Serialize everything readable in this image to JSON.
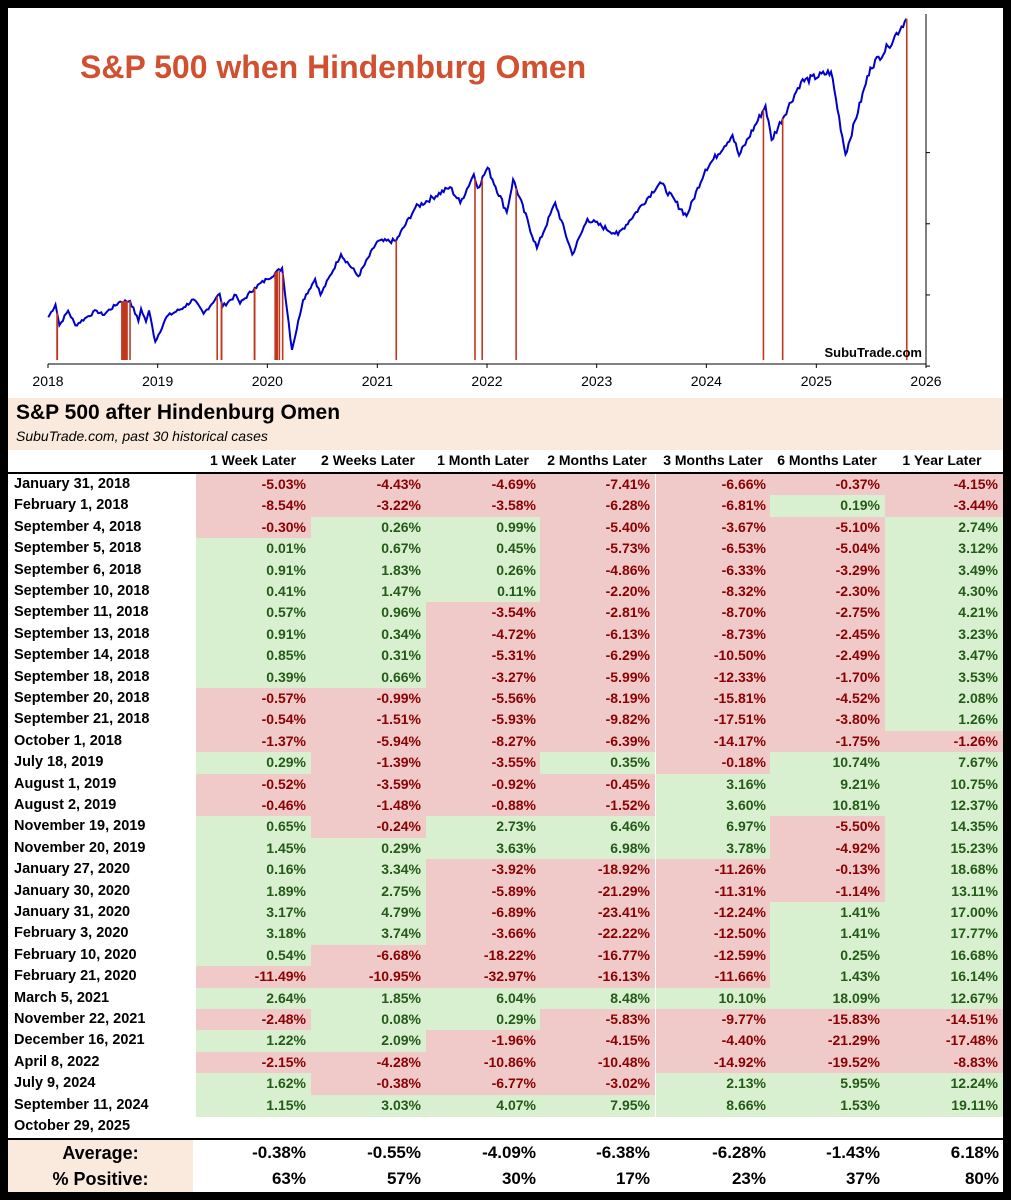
{
  "chart_data": {
    "type": "line",
    "title": "S&P 500 when Hindenburg Omen",
    "watermark": "SubuTrade.com",
    "x_ticks": [
      "2018",
      "2019",
      "2020",
      "2021",
      "2022",
      "2023",
      "2024",
      "2025",
      "2026"
    ],
    "colors": {
      "title": "#d0502f",
      "line": "#0000cc",
      "signal": "#c0391f"
    },
    "omen_dates": [
      "2018-01-31",
      "2018-02-01",
      "2018-09-04",
      "2018-09-05",
      "2018-09-06",
      "2018-09-10",
      "2018-09-11",
      "2018-09-13",
      "2018-09-14",
      "2018-09-18",
      "2018-09-20",
      "2018-09-21",
      "2018-10-01",
      "2019-07-18",
      "2019-08-01",
      "2019-08-02",
      "2019-11-19",
      "2019-11-20",
      "2020-01-27",
      "2020-01-30",
      "2020-01-31",
      "2020-02-03",
      "2020-02-10",
      "2020-02-21",
      "2021-03-05",
      "2021-11-22",
      "2021-12-16",
      "2022-04-08",
      "2024-07-09",
      "2024-09-11",
      "2025-10-29"
    ],
    "series": [
      {
        "points": [
          [
            "2018-01-02",
            2695
          ],
          [
            "2018-01-26",
            2873
          ],
          [
            "2018-02-08",
            2581
          ],
          [
            "2018-03-09",
            2786
          ],
          [
            "2018-04-02",
            2582
          ],
          [
            "2018-05-15",
            2711
          ],
          [
            "2018-06-12",
            2787
          ],
          [
            "2018-07-02",
            2726
          ],
          [
            "2018-08-29",
            2914
          ],
          [
            "2018-10-01",
            2924
          ],
          [
            "2018-10-29",
            2641
          ],
          [
            "2018-11-07",
            2814
          ],
          [
            "2018-11-23",
            2633
          ],
          [
            "2018-12-03",
            2790
          ],
          [
            "2018-12-24",
            2351
          ],
          [
            "2019-01-31",
            2704
          ],
          [
            "2019-03-29",
            2834
          ],
          [
            "2019-04-30",
            2946
          ],
          [
            "2019-06-03",
            2744
          ],
          [
            "2019-07-26",
            3025
          ],
          [
            "2019-08-05",
            2845
          ],
          [
            "2019-09-19",
            3006
          ],
          [
            "2019-10-02",
            2887
          ],
          [
            "2019-11-20",
            3108
          ],
          [
            "2019-12-31",
            3231
          ],
          [
            "2020-02-19",
            3386
          ],
          [
            "2020-03-23",
            2237
          ],
          [
            "2020-04-29",
            2939
          ],
          [
            "2020-06-08",
            3232
          ],
          [
            "2020-06-26",
            3009
          ],
          [
            "2020-09-02",
            3580
          ],
          [
            "2020-10-30",
            3270
          ],
          [
            "2020-12-31",
            3756
          ],
          [
            "2021-03-04",
            3768
          ],
          [
            "2021-05-07",
            4232
          ],
          [
            "2021-08-31",
            4523
          ],
          [
            "2021-10-04",
            4300
          ],
          [
            "2021-11-18",
            4704
          ],
          [
            "2021-12-01",
            4513
          ],
          [
            "2022-01-03",
            4796
          ],
          [
            "2022-03-08",
            4170
          ],
          [
            "2022-03-29",
            4632
          ],
          [
            "2022-06-16",
            3666
          ],
          [
            "2022-08-16",
            4305
          ],
          [
            "2022-10-12",
            3577
          ],
          [
            "2022-12-01",
            4076
          ],
          [
            "2023-03-13",
            3855
          ],
          [
            "2023-07-31",
            4589
          ],
          [
            "2023-10-27",
            4117
          ],
          [
            "2023-12-29",
            4770
          ],
          [
            "2024-03-28",
            5254
          ],
          [
            "2024-04-19",
            4967
          ],
          [
            "2024-07-16",
            5667
          ],
          [
            "2024-08-05",
            5186
          ],
          [
            "2024-11-11",
            6001
          ],
          [
            "2025-02-19",
            6144
          ],
          [
            "2025-04-08",
            4983
          ],
          [
            "2025-06-30",
            6205
          ],
          [
            "2025-08-28",
            6501
          ],
          [
            "2025-10-28",
            6890
          ]
        ]
      }
    ]
  },
  "table": {
    "title": "S&P 500 after Hindenburg Omen",
    "subtitle": "SubuTrade.com, past 30 historical cases",
    "columns": [
      "1 Week Later",
      "2 Weeks Later",
      "1 Month Later",
      "2 Months Later",
      "3 Months Later",
      "6 Months Later",
      "1 Year Later"
    ],
    "rows": [
      {
        "date": "January 31, 2018",
        "values": [
          "-5.03%",
          "-4.43%",
          "-4.69%",
          "-7.41%",
          "-6.66%",
          "-0.37%",
          "-4.15%"
        ]
      },
      {
        "date": "February 1, 2018",
        "values": [
          "-8.54%",
          "-3.22%",
          "-3.58%",
          "-6.28%",
          "-6.81%",
          "0.19%",
          "-3.44%"
        ]
      },
      {
        "date": "September 4, 2018",
        "values": [
          "-0.30%",
          "0.26%",
          "0.99%",
          "-5.40%",
          "-3.67%",
          "-5.10%",
          "2.74%"
        ]
      },
      {
        "date": "September 5, 2018",
        "values": [
          "0.01%",
          "0.67%",
          "0.45%",
          "-5.73%",
          "-6.53%",
          "-5.04%",
          "3.12%"
        ]
      },
      {
        "date": "September 6, 2018",
        "values": [
          "0.91%",
          "1.83%",
          "0.26%",
          "-4.86%",
          "-6.33%",
          "-3.29%",
          "3.49%"
        ]
      },
      {
        "date": "September 10, 2018",
        "values": [
          "0.41%",
          "1.47%",
          "0.11%",
          "-2.20%",
          "-8.32%",
          "-2.30%",
          "4.30%"
        ]
      },
      {
        "date": "September 11, 2018",
        "values": [
          "0.57%",
          "0.96%",
          "-3.54%",
          "-2.81%",
          "-8.70%",
          "-2.75%",
          "4.21%"
        ]
      },
      {
        "date": "September 13, 2018",
        "values": [
          "0.91%",
          "0.34%",
          "-4.72%",
          "-6.13%",
          "-8.73%",
          "-2.45%",
          "3.23%"
        ]
      },
      {
        "date": "September 14, 2018",
        "values": [
          "0.85%",
          "0.31%",
          "-5.31%",
          "-6.29%",
          "-10.50%",
          "-2.49%",
          "3.47%"
        ]
      },
      {
        "date": "September 18, 2018",
        "values": [
          "0.39%",
          "0.66%",
          "-3.27%",
          "-5.99%",
          "-12.33%",
          "-1.70%",
          "3.53%"
        ]
      },
      {
        "date": "September 20, 2018",
        "values": [
          "-0.57%",
          "-0.99%",
          "-5.56%",
          "-8.19%",
          "-15.81%",
          "-4.52%",
          "2.08%"
        ]
      },
      {
        "date": "September 21, 2018",
        "values": [
          "-0.54%",
          "-1.51%",
          "-5.93%",
          "-9.82%",
          "-17.51%",
          "-3.80%",
          "1.26%"
        ]
      },
      {
        "date": "October 1, 2018",
        "values": [
          "-1.37%",
          "-5.94%",
          "-8.27%",
          "-6.39%",
          "-14.17%",
          "-1.75%",
          "-1.26%"
        ]
      },
      {
        "date": "July 18, 2019",
        "values": [
          "0.29%",
          "-1.39%",
          "-3.55%",
          "0.35%",
          "-0.18%",
          "10.74%",
          "7.67%"
        ]
      },
      {
        "date": "August 1, 2019",
        "values": [
          "-0.52%",
          "-3.59%",
          "-0.92%",
          "-0.45%",
          "3.16%",
          "9.21%",
          "10.75%"
        ]
      },
      {
        "date": "August 2, 2019",
        "values": [
          "-0.46%",
          "-1.48%",
          "-0.88%",
          "-1.52%",
          "3.60%",
          "10.81%",
          "12.37%"
        ]
      },
      {
        "date": "November 19, 2019",
        "values": [
          "0.65%",
          "-0.24%",
          "2.73%",
          "6.46%",
          "6.97%",
          "-5.50%",
          "14.35%"
        ]
      },
      {
        "date": "November 20, 2019",
        "values": [
          "1.45%",
          "0.29%",
          "3.63%",
          "6.98%",
          "3.78%",
          "-4.92%",
          "15.23%"
        ]
      },
      {
        "date": "January 27, 2020",
        "values": [
          "0.16%",
          "3.34%",
          "-3.92%",
          "-18.92%",
          "-11.26%",
          "-0.13%",
          "18.68%"
        ]
      },
      {
        "date": "January 30, 2020",
        "values": [
          "1.89%",
          "2.75%",
          "-5.89%",
          "-21.29%",
          "-11.31%",
          "-1.14%",
          "13.11%"
        ]
      },
      {
        "date": "January 31, 2020",
        "values": [
          "3.17%",
          "4.79%",
          "-6.89%",
          "-23.41%",
          "-12.24%",
          "1.41%",
          "17.00%"
        ]
      },
      {
        "date": "February 3, 2020",
        "values": [
          "3.18%",
          "3.74%",
          "-3.66%",
          "-22.22%",
          "-12.50%",
          "1.41%",
          "17.77%"
        ]
      },
      {
        "date": "February 10, 2020",
        "values": [
          "0.54%",
          "-6.68%",
          "-18.22%",
          "-16.77%",
          "-12.59%",
          "0.25%",
          "16.68%"
        ]
      },
      {
        "date": "February 21, 2020",
        "values": [
          "-11.49%",
          "-10.95%",
          "-32.97%",
          "-16.13%",
          "-11.66%",
          "1.43%",
          "16.14%"
        ]
      },
      {
        "date": "March 5, 2021",
        "values": [
          "2.64%",
          "1.85%",
          "6.04%",
          "8.48%",
          "10.10%",
          "18.09%",
          "12.67%"
        ]
      },
      {
        "date": "November 22, 2021",
        "values": [
          "-2.48%",
          "0.08%",
          "0.29%",
          "-5.83%",
          "-9.77%",
          "-15.83%",
          "-14.51%"
        ]
      },
      {
        "date": "December 16, 2021",
        "values": [
          "1.22%",
          "2.09%",
          "-1.96%",
          "-4.15%",
          "-4.40%",
          "-21.29%",
          "-17.48%"
        ]
      },
      {
        "date": "April 8, 2022",
        "values": [
          "-2.15%",
          "-4.28%",
          "-10.86%",
          "-10.48%",
          "-14.92%",
          "-19.52%",
          "-8.83%"
        ]
      },
      {
        "date": "July 9, 2024",
        "values": [
          "1.62%",
          "-0.38%",
          "-6.77%",
          "-3.02%",
          "2.13%",
          "5.95%",
          "12.24%"
        ]
      },
      {
        "date": "September 11, 2024",
        "values": [
          "1.15%",
          "3.03%",
          "4.07%",
          "7.95%",
          "8.66%",
          "1.53%",
          "19.11%"
        ]
      },
      {
        "date": "October 29, 2025",
        "values": [
          "",
          "",
          "",
          "",
          "",
          "",
          ""
        ]
      }
    ],
    "summary": [
      {
        "label": "Average:",
        "values": [
          "-0.38%",
          "-0.55%",
          "-4.09%",
          "-6.38%",
          "-6.28%",
          "-1.43%",
          "6.18%"
        ]
      },
      {
        "label": "% Positive:",
        "values": [
          "63%",
          "57%",
          "30%",
          "17%",
          "23%",
          "37%",
          "80%"
        ]
      }
    ]
  }
}
